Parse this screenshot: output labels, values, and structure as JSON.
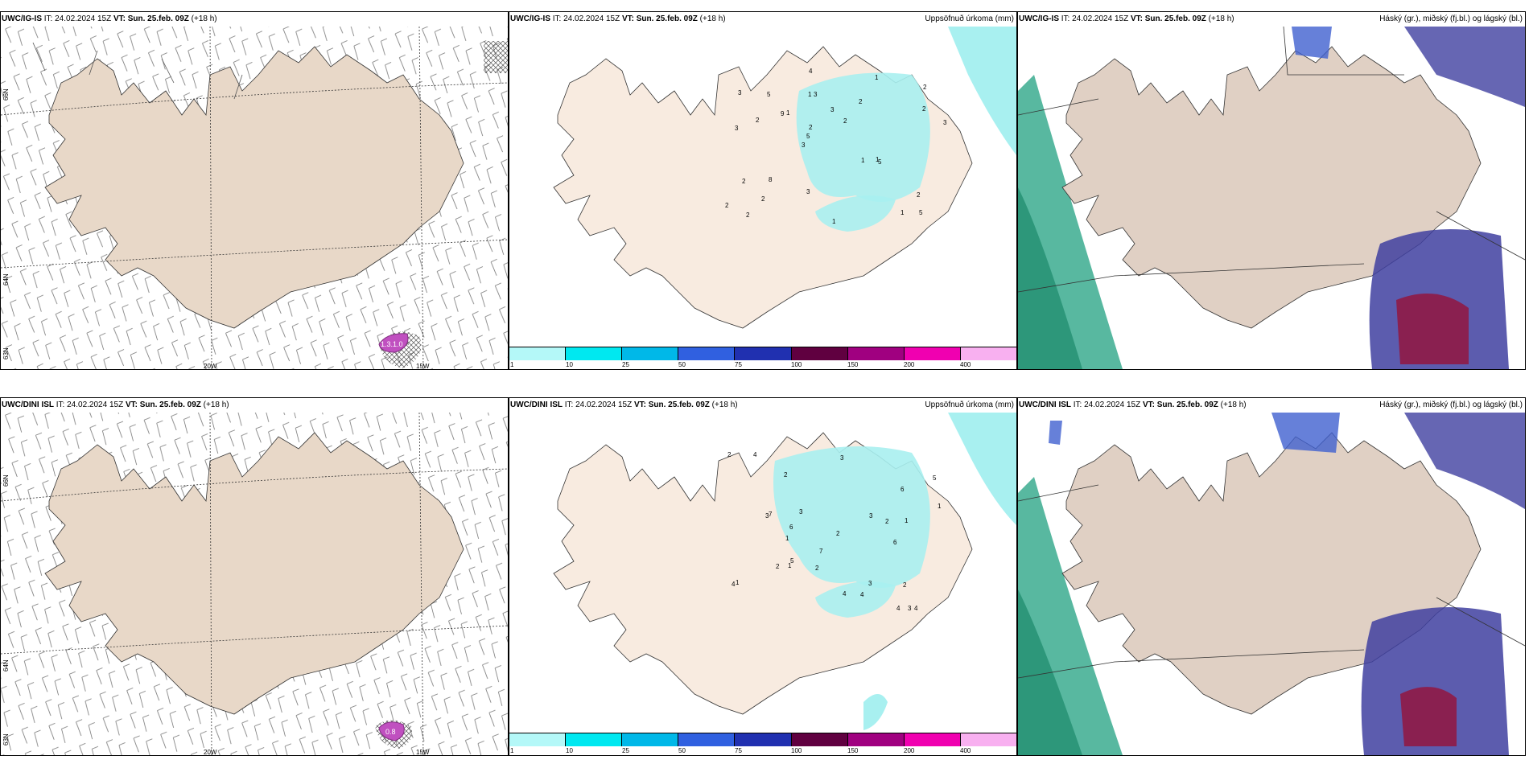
{
  "rows": [
    {
      "wind": {
        "model": "UWC/IG-IS",
        "it": " IT: 24.02.2024 15Z ",
        "vt": "VT: Sun. 25.feb. 09Z",
        "lead": " (+18 h)",
        "value": "1.3.1.0"
      },
      "precip": {
        "model": "UWC/IG-IS",
        "it": " IT: 24.02.2024 15Z ",
        "vt": "VT: Sun. 25.feb. 09Z",
        "lead": " (+18 h)",
        "right": "Uppsöfnuð úrkoma (mm)"
      },
      "cloud": {
        "model": "UWC/IG-IS",
        "it": " IT: 24.02.2024 15Z ",
        "vt": "VT: Sun. 25.feb. 09Z",
        "lead": " (+18 h)",
        "right": "Háský (gr.), miðský (fj.bl.) og lágský (bl.)"
      }
    },
    {
      "wind": {
        "model": "UWC/DINI ISL",
        "it": " IT: 24.02.2024 15Z ",
        "vt": "VT: Sun. 25.feb. 09Z",
        "lead": " (+18 h)",
        "value": "0.8"
      },
      "precip": {
        "model": "UWC/DINI ISL",
        "it": " IT: 24.02.2024 15Z ",
        "vt": "VT: Sun. 25.feb. 09Z",
        "lead": " (+18 h)",
        "right": "Uppsöfnuð úrkoma (mm)"
      },
      "cloud": {
        "model": "UWC/DINI ISL",
        "it": " IT: 24.02.2024 15Z ",
        "vt": "VT: Sun. 25.feb. 09Z",
        "lead": " (+18 h)",
        "right": "Háský (gr.), miðský (fj.bl.) og lágský (bl.)"
      }
    }
  ],
  "axes": {
    "lon1": "20W",
    "lon2": "15W",
    "lat1": "66N",
    "lat2": "64N",
    "lat3": "63N"
  },
  "colorbar": {
    "ticks": [
      "1",
      "10",
      "25",
      "50",
      "75",
      "100",
      "150",
      "200",
      "400"
    ],
    "colors": [
      "#b4f8f8",
      "#00e8f0",
      "#00b8e8",
      "#3060e0",
      "#2030b0",
      "#600040",
      "#a00080",
      "#f000b0",
      "#f8b0f0"
    ]
  },
  "colors": {
    "land": "#e8d8c8",
    "precip_land": "#f8ebe0",
    "precip": "#a8f0f0",
    "cloud_land": "#e0d0c4",
    "high_cloud": "#20a080",
    "mid_cloud": "#4040a0",
    "low_cloud": "#8a2050"
  },
  "precip_labels_row1": [
    "5",
    "3",
    "2",
    "3",
    "2",
    "2",
    "1",
    "3",
    "2",
    "1",
    "2",
    "2",
    "3",
    "2",
    "5",
    "3",
    "4",
    "3",
    "1",
    "2",
    "5",
    "3",
    "2",
    "5",
    "1",
    "8",
    "1",
    "2",
    "1",
    "1",
    "9",
    "2"
  ],
  "precip_labels_row2": [
    "7",
    "3",
    "4",
    "6",
    "4",
    "2",
    "2",
    "1",
    "1",
    "2",
    "1",
    "3",
    "2",
    "4",
    "6",
    "3",
    "2",
    "1",
    "5",
    "3",
    "3",
    "7",
    "4",
    "2",
    "2",
    "3",
    "4",
    "1",
    "6",
    "4",
    "5"
  ]
}
